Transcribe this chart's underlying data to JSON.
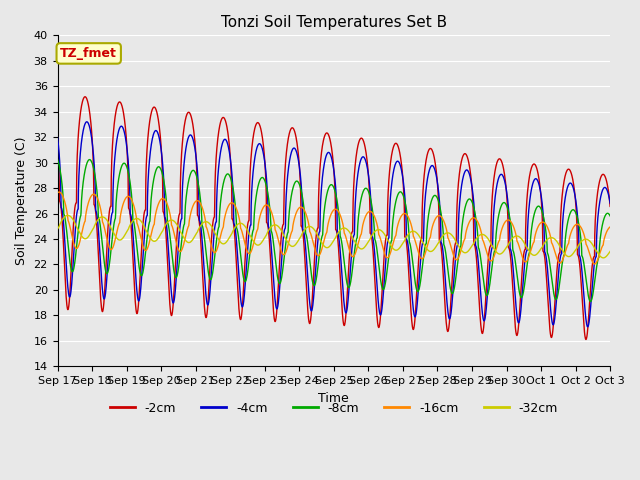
{
  "title": "Tonzi Soil Temperatures Set B",
  "xlabel": "Time",
  "ylabel": "Soil Temperature (C)",
  "ylim": [
    14,
    40
  ],
  "yticks": [
    14,
    16,
    18,
    20,
    22,
    24,
    26,
    28,
    30,
    32,
    34,
    36,
    38,
    40
  ],
  "series_labels": [
    "-2cm",
    "-4cm",
    "-8cm",
    "-16cm",
    "-32cm"
  ],
  "series_colors": [
    "#cc0000",
    "#0000cc",
    "#00aa00",
    "#ff8800",
    "#cccc00"
  ],
  "annotation_text": "TZ_fmet",
  "annotation_bg": "#ffffcc",
  "annotation_border": "#aaaa00",
  "plot_bg": "#e8e8e8",
  "fig_bg": "#e8e8e8",
  "title_fontsize": 11,
  "axis_fontsize": 8,
  "legend_fontsize": 9,
  "n_days": 16,
  "start_day": 17,
  "points_per_day": 144
}
